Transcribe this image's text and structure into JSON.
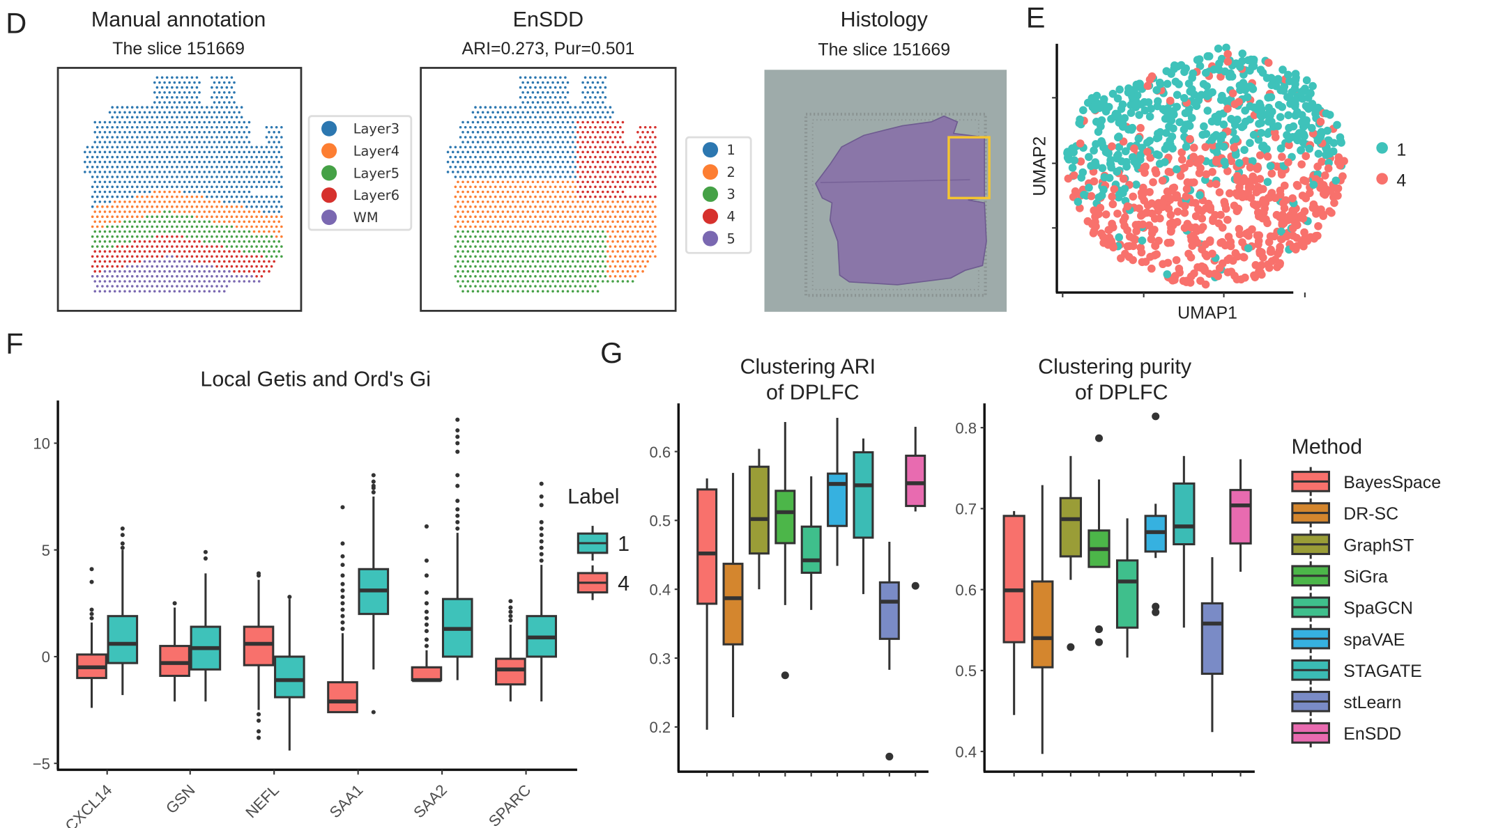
{
  "panels": {
    "D": {
      "letter": "D",
      "manual": {
        "title": "Manual annotation",
        "subtitle": "The slice 151669",
        "legend": [
          {
            "label": "Layer3",
            "color": "#2c77b0"
          },
          {
            "label": "Layer4",
            "color": "#fd7e32"
          },
          {
            "label": "Layer5",
            "color": "#45a146"
          },
          {
            "label": "Layer6",
            "color": "#d6312d"
          },
          {
            "label": "WM",
            "color": "#7a68b1"
          }
        ]
      },
      "ensdd": {
        "title": "EnSDD",
        "subtitle": "ARI=0.273, Pur=0.501",
        "legend": [
          {
            "label": "1",
            "color": "#2c77b0"
          },
          {
            "label": "2",
            "color": "#fd7e32"
          },
          {
            "label": "3",
            "color": "#45a146"
          },
          {
            "label": "4",
            "color": "#d6312d"
          },
          {
            "label": "5",
            "color": "#7a68b1"
          }
        ]
      },
      "histology": {
        "title": "Histology",
        "subtitle": "The slice 151669",
        "background_color": "#9eabaa",
        "tissue_color": "#8a76a8",
        "highlight_color": "#f5c530"
      }
    },
    "E": {
      "letter": "E",
      "xlabel": "UMAP1",
      "ylabel": "UMAP2",
      "legend": [
        {
          "label": "1",
          "color": "#3ec2ba"
        },
        {
          "label": "4",
          "color": "#f8716c"
        }
      ]
    },
    "F": {
      "letter": "F"
    },
    "G": {
      "letter": "G"
    }
  },
  "chart_data": [
    {
      "id": "F",
      "type": "boxplot",
      "title": "Local Getis and Ord's Gi",
      "xlabel": "",
      "ylabel": "",
      "ylim": [
        -5.3,
        12
      ],
      "yticks": [
        -5,
        0,
        5,
        10
      ],
      "ytick_labels": [
        "−5",
        "0",
        "5",
        "10"
      ],
      "categories": [
        "CXCL14",
        "GSN",
        "NEFL",
        "SAA1",
        "SAA2",
        "SPARC"
      ],
      "legend_title": "Label",
      "legend_position": "right",
      "series": [
        {
          "name": "1",
          "color": "#3ec2ba",
          "boxes": [
            {
              "low": -1.8,
              "q1": -0.3,
              "median": 0.6,
              "q3": 1.9,
              "high": 5.0,
              "outliers": [
                5.1,
                5.3,
                5.7,
                6.0
              ]
            },
            {
              "low": -2.1,
              "q1": -0.6,
              "median": 0.4,
              "q3": 1.4,
              "high": 3.9,
              "outliers": [
                4.6,
                4.9
              ]
            },
            {
              "low": -4.4,
              "q1": -1.9,
              "median": -1.1,
              "q3": 0.0,
              "high": 2.7,
              "outliers": [
                2.8
              ]
            },
            {
              "low": -0.6,
              "q1": 2.0,
              "median": 3.1,
              "q3": 4.1,
              "high": 7.5,
              "outliers": [
                7.7,
                7.9,
                8.0,
                8.2,
                8.5,
                -2.6
              ]
            },
            {
              "low": -1.1,
              "q1": 0.0,
              "median": 1.3,
              "q3": 2.7,
              "high": 5.8,
              "outliers": [
                6.0,
                6.3,
                6.6,
                6.9,
                7.3,
                8.0,
                8.5,
                9.6,
                10.0,
                10.3,
                10.6,
                11.1
              ]
            },
            {
              "low": -2.1,
              "q1": 0.0,
              "median": 0.9,
              "q3": 1.9,
              "high": 4.3,
              "outliers": [
                4.5,
                4.8,
                5.1,
                5.4,
                5.7,
                6.0,
                6.3,
                7.1,
                7.5,
                8.1
              ]
            }
          ]
        },
        {
          "name": "4",
          "color": "#f8716c",
          "boxes": [
            {
              "low": -2.4,
              "q1": -1.0,
              "median": -0.5,
              "q3": 0.1,
              "high": 1.6,
              "outliers": [
                1.8,
                2.0,
                2.2,
                3.5,
                4.1
              ]
            },
            {
              "low": -2.1,
              "q1": -0.9,
              "median": -0.3,
              "q3": 0.5,
              "high": 2.3,
              "outliers": [
                2.5
              ]
            },
            {
              "low": -2.5,
              "q1": -0.4,
              "median": 0.6,
              "q3": 1.4,
              "high": 3.6,
              "outliers": [
                3.8,
                3.9,
                -2.7,
                -3.0,
                -3.5,
                -3.8
              ]
            },
            {
              "low": -2.6,
              "q1": -2.6,
              "median": -2.1,
              "q3": -1.2,
              "high": 1.1,
              "outliers": [
                1.3,
                1.6,
                1.9,
                2.2,
                2.5,
                2.8,
                3.1,
                3.4,
                3.8,
                4.3,
                4.7,
                5.3,
                7.0
              ]
            },
            {
              "low": -1.1,
              "q1": -1.1,
              "median": -1.1,
              "q3": -0.5,
              "high": 0.3,
              "outliers": [
                0.5,
                0.8,
                1.2,
                1.5,
                1.8,
                2.1,
                2.5,
                3.0,
                3.8,
                4.5,
                6.1
              ]
            },
            {
              "low": -2.1,
              "q1": -1.3,
              "median": -0.6,
              "q3": -0.1,
              "high": 1.5,
              "outliers": [
                1.7,
                1.9,
                2.1,
                2.3,
                2.6
              ]
            }
          ]
        }
      ]
    },
    {
      "id": "G-ARI",
      "type": "boxplot",
      "title": "Clustering ARI\nof DPLFC",
      "title_lines": [
        "Clustering ARI",
        "of DPLFC"
      ],
      "ylim": [
        0.135,
        0.67
      ],
      "yticks": [
        0.2,
        0.3,
        0.4,
        0.5,
        0.6
      ],
      "ytick_labels": [
        "0.2",
        "0.3",
        "0.4",
        "0.5",
        "0.6"
      ],
      "categories": [
        "BayesSpace",
        "DR-SC",
        "GraphST",
        "SiGra",
        "SpaGCN",
        "spaVAE",
        "STAGATE",
        "stLearn",
        "EnSDD"
      ],
      "boxes": [
        {
          "low": 0.196,
          "q1": 0.379,
          "median": 0.452,
          "q3": 0.545,
          "high": 0.561,
          "outliers": []
        },
        {
          "low": 0.214,
          "q1": 0.32,
          "median": 0.387,
          "q3": 0.437,
          "high": 0.569,
          "outliers": []
        },
        {
          "low": 0.4,
          "q1": 0.452,
          "median": 0.502,
          "q3": 0.578,
          "high": 0.604,
          "outliers": []
        },
        {
          "low": 0.377,
          "q1": 0.467,
          "median": 0.512,
          "q3": 0.543,
          "high": 0.643,
          "outliers": [
            0.275
          ]
        },
        {
          "low": 0.37,
          "q1": 0.424,
          "median": 0.442,
          "q3": 0.491,
          "high": 0.564,
          "outliers": []
        },
        {
          "low": 0.434,
          "q1": 0.492,
          "median": 0.553,
          "q3": 0.568,
          "high": 0.649,
          "outliers": []
        },
        {
          "low": 0.393,
          "q1": 0.475,
          "median": 0.551,
          "q3": 0.599,
          "high": 0.619,
          "outliers": []
        },
        {
          "low": 0.283,
          "q1": 0.328,
          "median": 0.382,
          "q3": 0.41,
          "high": 0.469,
          "outliers": [
            0.157
          ]
        },
        {
          "low": 0.513,
          "q1": 0.521,
          "median": 0.554,
          "q3": 0.594,
          "high": 0.636,
          "outliers": [
            0.405
          ]
        }
      ]
    },
    {
      "id": "G-Purity",
      "type": "boxplot",
      "title": "Clustering purity\nof DPLFC",
      "title_lines": [
        "Clustering purity",
        "of DPLFC"
      ],
      "ylim": [
        0.375,
        0.83
      ],
      "yticks": [
        0.4,
        0.5,
        0.6,
        0.7,
        0.8
      ],
      "ytick_labels": [
        "0.4",
        "0.5",
        "0.6",
        "0.7",
        "0.8"
      ],
      "categories": [
        "BayesSpace",
        "DR-SC",
        "GraphST",
        "SiGra",
        "SpaGCN",
        "spaVAE",
        "STAGATE",
        "stLearn",
        "EnSDD"
      ],
      "boxes": [
        {
          "low": 0.445,
          "q1": 0.535,
          "median": 0.599,
          "q3": 0.691,
          "high": 0.697,
          "outliers": []
        },
        {
          "low": 0.397,
          "q1": 0.504,
          "median": 0.54,
          "q3": 0.61,
          "high": 0.729,
          "outliers": []
        },
        {
          "low": 0.612,
          "q1": 0.641,
          "median": 0.687,
          "q3": 0.713,
          "high": 0.765,
          "outliers": [
            0.529
          ]
        },
        {
          "low": 0.628,
          "q1": 0.628,
          "median": 0.65,
          "q3": 0.673,
          "high": 0.736,
          "outliers": [
            0.787,
            0.551,
            0.535
          ]
        },
        {
          "low": 0.516,
          "q1": 0.553,
          "median": 0.61,
          "q3": 0.636,
          "high": 0.688,
          "outliers": []
        },
        {
          "low": 0.639,
          "q1": 0.647,
          "median": 0.671,
          "q3": 0.691,
          "high": 0.706,
          "outliers": [
            0.814,
            0.579,
            0.572
          ]
        },
        {
          "low": 0.553,
          "q1": 0.656,
          "median": 0.678,
          "q3": 0.731,
          "high": 0.765,
          "outliers": []
        },
        {
          "low": 0.424,
          "q1": 0.496,
          "median": 0.558,
          "q3": 0.583,
          "high": 0.64,
          "outliers": []
        },
        {
          "low": 0.622,
          "q1": 0.657,
          "median": 0.704,
          "q3": 0.723,
          "high": 0.761,
          "outliers": []
        }
      ]
    }
  ],
  "method_legend": {
    "title": "Method",
    "items": [
      {
        "label": "BayesSpace",
        "color": "#f8716c"
      },
      {
        "label": "DR-SC",
        "color": "#d4862e"
      },
      {
        "label": "GraphST",
        "color": "#9a9d37"
      },
      {
        "label": "SiGra",
        "color": "#4cb649"
      },
      {
        "label": "SpaGCN",
        "color": "#3fbf8c"
      },
      {
        "label": "spaVAE",
        "color": "#36b1e0"
      },
      {
        "label": "STAGATE",
        "color": "#3bbcb5"
      },
      {
        "label": "stLearn",
        "color": "#7a8bc6"
      },
      {
        "label": "EnSDD",
        "color": "#e86bb0"
      }
    ]
  },
  "label_legend": {
    "title": "Label",
    "items": [
      {
        "label": "1",
        "color": "#3ec2ba"
      },
      {
        "label": "4",
        "color": "#f8716c"
      }
    ]
  }
}
